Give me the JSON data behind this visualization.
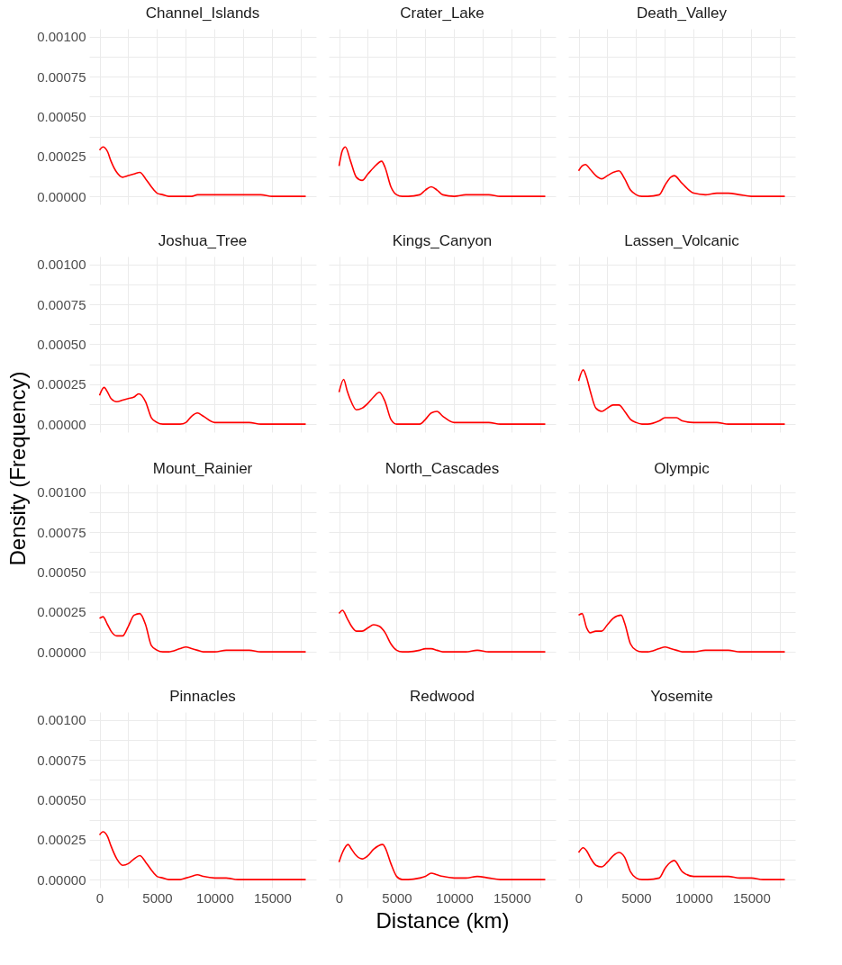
{
  "chart_data": [
    {
      "type": "line",
      "title": "Channel_Islands",
      "color": "#ff0000",
      "grid": true,
      "tick_labels": "y",
      "xlim": [
        -900,
        18800
      ],
      "ylim": [
        -5e-05,
        0.00105
      ],
      "xticks": [
        0,
        {
          "value": 2500,
          "label": null
        },
        5000,
        {
          "value": 7500,
          "label": null
        },
        10000,
        {
          "value": 12500,
          "label": null
        },
        15000,
        {
          "value": 17500,
          "label": null
        }
      ],
      "yticks": [
        {
          "value": 0,
          "label": "0.00000"
        },
        {
          "value": 0.000125,
          "label": null
        },
        {
          "value": 0.00025,
          "label": "0.00025"
        },
        {
          "value": 0.000375,
          "label": null
        },
        {
          "value": 0.0005,
          "label": "0.00050"
        },
        {
          "value": 0.000625,
          "label": null
        },
        {
          "value": 0.00075,
          "label": "0.00075"
        },
        {
          "value": 0.000875,
          "label": null
        },
        {
          "value": 0.001,
          "label": "0.00100"
        }
      ],
      "x": [
        0,
        300,
        700,
        1000,
        1500,
        2000,
        2500,
        3000,
        3500,
        4000,
        4500,
        5000,
        5500,
        6000,
        7000,
        7500,
        8000,
        8500,
        9000,
        10000,
        11000,
        12000,
        13000,
        14000,
        15000,
        16000,
        17900
      ],
      "values": [
        0.00029,
        0.00031,
        0.00028,
        0.00022,
        0.00015,
        0.00012,
        0.00013,
        0.00014,
        0.00015,
        0.00011,
        6e-05,
        2e-05,
        1e-05,
        0,
        0,
        0,
        0,
        1e-05,
        1e-05,
        1e-05,
        1e-05,
        1e-05,
        1e-05,
        1e-05,
        0,
        0,
        0
      ]
    },
    {
      "type": "line",
      "title": "Crater_Lake",
      "color": "#ff0000",
      "grid": true,
      "tick_labels": false,
      "xlim": [
        -900,
        18800
      ],
      "ylim": [
        -5e-05,
        0.00105
      ],
      "xticks": [
        0,
        {
          "value": 2500,
          "label": null
        },
        5000,
        {
          "value": 7500,
          "label": null
        },
        10000,
        {
          "value": 12500,
          "label": null
        },
        15000,
        {
          "value": 17500,
          "label": null
        }
      ],
      "yticks": [
        {
          "value": 0,
          "label": null
        },
        {
          "value": 0.000125,
          "label": null
        },
        {
          "value": 0.00025,
          "label": null
        },
        {
          "value": 0.000375,
          "label": null
        },
        {
          "value": 0.0005,
          "label": null
        },
        {
          "value": 0.000625,
          "label": null
        },
        {
          "value": 0.00075,
          "label": null
        },
        {
          "value": 0.000875,
          "label": null
        },
        {
          "value": 0.001,
          "label": null
        }
      ],
      "x": [
        0,
        300,
        550,
        1000,
        1500,
        2000,
        2500,
        3000,
        3700,
        4000,
        4500,
        5000,
        5500,
        6000,
        7000,
        7500,
        8000,
        8500,
        9000,
        10000,
        11000,
        12000,
        13000,
        14000,
        15000,
        16000,
        17900
      ],
      "values": [
        0.00019,
        0.00029,
        0.00031,
        0.00022,
        0.00012,
        0.0001,
        0.00014,
        0.00018,
        0.00022,
        0.00018,
        6e-05,
        1e-05,
        0,
        0,
        1e-05,
        4e-05,
        6e-05,
        4e-05,
        1e-05,
        0,
        1e-05,
        1e-05,
        1e-05,
        0,
        0,
        0,
        0
      ]
    },
    {
      "type": "line",
      "title": "Death_Valley",
      "color": "#ff0000",
      "grid": true,
      "tick_labels": false,
      "xlim": [
        -900,
        18800
      ],
      "ylim": [
        -5e-05,
        0.00105
      ],
      "xticks": [
        0,
        {
          "value": 2500,
          "label": null
        },
        5000,
        {
          "value": 7500,
          "label": null
        },
        10000,
        {
          "value": 12500,
          "label": null
        },
        15000,
        {
          "value": 17500,
          "label": null
        }
      ],
      "yticks": [
        {
          "value": 0,
          "label": null
        },
        {
          "value": 0.000125,
          "label": null
        },
        {
          "value": 0.00025,
          "label": null
        },
        {
          "value": 0.000375,
          "label": null
        },
        {
          "value": 0.0005,
          "label": null
        },
        {
          "value": 0.000625,
          "label": null
        },
        {
          "value": 0.00075,
          "label": null
        },
        {
          "value": 0.000875,
          "label": null
        },
        {
          "value": 0.001,
          "label": null
        }
      ],
      "x": [
        0,
        300,
        600,
        1000,
        1500,
        2000,
        2500,
        3000,
        3500,
        4000,
        4500,
        5000,
        5500,
        6000,
        7000,
        7500,
        8000,
        8300,
        9000,
        10000,
        11000,
        12000,
        13000,
        14000,
        15000,
        16000,
        17900
      ],
      "values": [
        0.00016,
        0.00019,
        0.0002,
        0.00017,
        0.00013,
        0.00011,
        0.00013,
        0.00015,
        0.00016,
        0.00011,
        4e-05,
        1e-05,
        0,
        0,
        1e-05,
        7e-05,
        0.00012,
        0.00013,
        8e-05,
        2e-05,
        1e-05,
        2e-05,
        2e-05,
        1e-05,
        0,
        0,
        0
      ]
    },
    {
      "type": "line",
      "title": "Joshua_Tree",
      "color": "#ff0000",
      "grid": true,
      "tick_labels": "y",
      "xlim": [
        -900,
        18800
      ],
      "ylim": [
        -5e-05,
        0.00105
      ],
      "xticks": [
        0,
        {
          "value": 2500,
          "label": null
        },
        5000,
        {
          "value": 7500,
          "label": null
        },
        10000,
        {
          "value": 12500,
          "label": null
        },
        15000,
        {
          "value": 17500,
          "label": null
        }
      ],
      "yticks": [
        {
          "value": 0,
          "label": "0.00000"
        },
        {
          "value": 0.000125,
          "label": null
        },
        {
          "value": 0.00025,
          "label": "0.00025"
        },
        {
          "value": 0.000375,
          "label": null
        },
        {
          "value": 0.0005,
          "label": "0.00050"
        },
        {
          "value": 0.000625,
          "label": null
        },
        {
          "value": 0.00075,
          "label": "0.00075"
        },
        {
          "value": 0.000875,
          "label": null
        },
        {
          "value": 0.001,
          "label": "0.00100"
        }
      ],
      "x": [
        0,
        400,
        700,
        1000,
        1500,
        2000,
        2500,
        3000,
        3400,
        4000,
        4500,
        5000,
        5500,
        6000,
        7000,
        7500,
        8000,
        8500,
        9000,
        10000,
        11000,
        12000,
        13000,
        14000,
        15000,
        16000,
        17900
      ],
      "values": [
        0.00018,
        0.00023,
        0.0002,
        0.00016,
        0.00014,
        0.00015,
        0.00016,
        0.00017,
        0.00019,
        0.00014,
        4e-05,
        1e-05,
        0,
        0,
        0,
        1e-05,
        5e-05,
        7e-05,
        5e-05,
        1e-05,
        1e-05,
        1e-05,
        1e-05,
        0,
        0,
        0,
        0
      ]
    },
    {
      "type": "line",
      "title": "Kings_Canyon",
      "color": "#ff0000",
      "grid": true,
      "tick_labels": false,
      "xlim": [
        -900,
        18800
      ],
      "ylim": [
        -5e-05,
        0.00105
      ],
      "xticks": [
        0,
        {
          "value": 2500,
          "label": null
        },
        5000,
        {
          "value": 7500,
          "label": null
        },
        10000,
        {
          "value": 12500,
          "label": null
        },
        15000,
        {
          "value": 17500,
          "label": null
        }
      ],
      "yticks": [
        {
          "value": 0,
          "label": null
        },
        {
          "value": 0.000125,
          "label": null
        },
        {
          "value": 0.00025,
          "label": null
        },
        {
          "value": 0.000375,
          "label": null
        },
        {
          "value": 0.0005,
          "label": null
        },
        {
          "value": 0.000625,
          "label": null
        },
        {
          "value": 0.00075,
          "label": null
        },
        {
          "value": 0.000875,
          "label": null
        },
        {
          "value": 0.001,
          "label": null
        }
      ],
      "x": [
        0,
        400,
        700,
        1000,
        1500,
        2000,
        2500,
        3000,
        3500,
        4000,
        4500,
        5000,
        5500,
        6000,
        7000,
        7500,
        8000,
        8500,
        9000,
        10000,
        11000,
        12000,
        13000,
        14000,
        15000,
        16000,
        17900
      ],
      "values": [
        0.0002,
        0.00028,
        0.00021,
        0.00015,
        9e-05,
        0.0001,
        0.00013,
        0.00017,
        0.0002,
        0.00014,
        3e-05,
        0,
        0,
        0,
        0,
        3e-05,
        7e-05,
        8e-05,
        5e-05,
        1e-05,
        1e-05,
        1e-05,
        1e-05,
        0,
        0,
        0,
        0
      ]
    },
    {
      "type": "line",
      "title": "Lassen_Volcanic",
      "color": "#ff0000",
      "grid": true,
      "tick_labels": false,
      "xlim": [
        -900,
        18800
      ],
      "ylim": [
        -5e-05,
        0.00105
      ],
      "xticks": [
        0,
        {
          "value": 2500,
          "label": null
        },
        5000,
        {
          "value": 7500,
          "label": null
        },
        10000,
        {
          "value": 12500,
          "label": null
        },
        15000,
        {
          "value": 17500,
          "label": null
        }
      ],
      "yticks": [
        {
          "value": 0,
          "label": null
        },
        {
          "value": 0.000125,
          "label": null
        },
        {
          "value": 0.00025,
          "label": null
        },
        {
          "value": 0.000375,
          "label": null
        },
        {
          "value": 0.0005,
          "label": null
        },
        {
          "value": 0.000625,
          "label": null
        },
        {
          "value": 0.00075,
          "label": null
        },
        {
          "value": 0.000875,
          "label": null
        },
        {
          "value": 0.001,
          "label": null
        }
      ],
      "x": [
        0,
        400,
        700,
        1000,
        1500,
        2000,
        2500,
        3000,
        3500,
        4000,
        4500,
        5000,
        5500,
        6000,
        7000,
        7500,
        8000,
        8500,
        9000,
        10000,
        11000,
        12000,
        13000,
        14000,
        15000,
        16000,
        17900
      ],
      "values": [
        0.00027,
        0.00034,
        0.00029,
        0.00021,
        0.0001,
        8e-05,
        0.0001,
        0.00012,
        0.00012,
        8e-05,
        3e-05,
        1e-05,
        0,
        0,
        2e-05,
        4e-05,
        4e-05,
        4e-05,
        2e-05,
        1e-05,
        1e-05,
        1e-05,
        0,
        0,
        0,
        0,
        0
      ]
    },
    {
      "type": "line",
      "title": "Mount_Rainier",
      "ylabel": "Density (Frequency)",
      "color": "#ff0000",
      "grid": true,
      "tick_labels": "y",
      "xlim": [
        -900,
        18800
      ],
      "ylim": [
        -5e-05,
        0.00105
      ],
      "xticks": [
        0,
        {
          "value": 2500,
          "label": null
        },
        5000,
        {
          "value": 7500,
          "label": null
        },
        10000,
        {
          "value": 12500,
          "label": null
        },
        15000,
        {
          "value": 17500,
          "label": null
        }
      ],
      "yticks": [
        {
          "value": 0,
          "label": "0.00000"
        },
        {
          "value": 0.000125,
          "label": null
        },
        {
          "value": 0.00025,
          "label": "0.00025"
        },
        {
          "value": 0.000375,
          "label": null
        },
        {
          "value": 0.0005,
          "label": "0.00050"
        },
        {
          "value": 0.000625,
          "label": null
        },
        {
          "value": 0.00075,
          "label": "0.00075"
        },
        {
          "value": 0.000875,
          "label": null
        },
        {
          "value": 0.001,
          "label": "0.00100"
        }
      ],
      "x": [
        0,
        300,
        700,
        1000,
        1500,
        2000,
        2500,
        3000,
        3500,
        4000,
        4500,
        5000,
        5500,
        6000,
        7000,
        7500,
        8000,
        8500,
        9000,
        10000,
        11000,
        12000,
        13000,
        14000,
        15000,
        16000,
        17900
      ],
      "values": [
        0.00021,
        0.00022,
        0.00017,
        0.00013,
        0.0001,
        0.0001,
        0.00016,
        0.00023,
        0.00024,
        0.00017,
        4e-05,
        1e-05,
        0,
        0,
        2e-05,
        3e-05,
        2e-05,
        1e-05,
        0,
        0,
        1e-05,
        1e-05,
        1e-05,
        0,
        0,
        0,
        0
      ]
    },
    {
      "type": "line",
      "title": "North_Cascades",
      "color": "#ff0000",
      "grid": true,
      "tick_labels": false,
      "xlim": [
        -900,
        18800
      ],
      "ylim": [
        -5e-05,
        0.00105
      ],
      "xticks": [
        0,
        {
          "value": 2500,
          "label": null
        },
        5000,
        {
          "value": 7500,
          "label": null
        },
        10000,
        {
          "value": 12500,
          "label": null
        },
        15000,
        {
          "value": 17500,
          "label": null
        }
      ],
      "yticks": [
        {
          "value": 0,
          "label": null
        },
        {
          "value": 0.000125,
          "label": null
        },
        {
          "value": 0.00025,
          "label": null
        },
        {
          "value": 0.000375,
          "label": null
        },
        {
          "value": 0.0005,
          "label": null
        },
        {
          "value": 0.000625,
          "label": null
        },
        {
          "value": 0.00075,
          "label": null
        },
        {
          "value": 0.000875,
          "label": null
        },
        {
          "value": 0.001,
          "label": null
        }
      ],
      "x": [
        0,
        300,
        700,
        1000,
        1500,
        2000,
        2500,
        3000,
        3500,
        4000,
        4500,
        5000,
        5500,
        6000,
        7000,
        7500,
        8000,
        8500,
        9000,
        10000,
        11000,
        12000,
        13000,
        14000,
        15000,
        16000,
        17900
      ],
      "values": [
        0.00024,
        0.00026,
        0.00021,
        0.00017,
        0.00013,
        0.00013,
        0.00015,
        0.00017,
        0.00016,
        0.00012,
        5e-05,
        1e-05,
        0,
        0,
        1e-05,
        2e-05,
        2e-05,
        1e-05,
        0,
        0,
        0,
        1e-05,
        0,
        0,
        0,
        0,
        0
      ]
    },
    {
      "type": "line",
      "title": "Olympic",
      "color": "#ff0000",
      "grid": true,
      "tick_labels": false,
      "xlim": [
        -900,
        18800
      ],
      "ylim": [
        -5e-05,
        0.00105
      ],
      "xticks": [
        0,
        {
          "value": 2500,
          "label": null
        },
        5000,
        {
          "value": 7500,
          "label": null
        },
        10000,
        {
          "value": 12500,
          "label": null
        },
        15000,
        {
          "value": 17500,
          "label": null
        }
      ],
      "yticks": [
        {
          "value": 0,
          "label": null
        },
        {
          "value": 0.000125,
          "label": null
        },
        {
          "value": 0.00025,
          "label": null
        },
        {
          "value": 0.000375,
          "label": null
        },
        {
          "value": 0.0005,
          "label": null
        },
        {
          "value": 0.000625,
          "label": null
        },
        {
          "value": 0.00075,
          "label": null
        },
        {
          "value": 0.000875,
          "label": null
        },
        {
          "value": 0.001,
          "label": null
        }
      ],
      "x": [
        0,
        300,
        700,
        1000,
        1500,
        2000,
        2500,
        3000,
        3700,
        4000,
        4500,
        5000,
        5500,
        6000,
        7000,
        7500,
        8000,
        8500,
        9000,
        10000,
        11000,
        12000,
        13000,
        14000,
        15000,
        16000,
        17900
      ],
      "values": [
        0.00023,
        0.00024,
        0.00015,
        0.00012,
        0.00013,
        0.00013,
        0.00017,
        0.00021,
        0.00023,
        0.00018,
        5e-05,
        1e-05,
        0,
        0,
        2e-05,
        3e-05,
        2e-05,
        1e-05,
        0,
        0,
        1e-05,
        1e-05,
        1e-05,
        0,
        0,
        0,
        0
      ]
    },
    {
      "type": "line",
      "title": "Pinnacles",
      "color": "#ff0000",
      "grid": true,
      "xlim": [
        -900,
        18800
      ],
      "ylim": [
        -5e-05,
        0.00105
      ],
      "xticks": [
        0,
        {
          "value": 2500,
          "label": null
        },
        5000,
        {
          "value": 7500,
          "label": null
        },
        10000,
        {
          "value": 12500,
          "label": null
        },
        15000,
        {
          "value": 17500,
          "label": null
        }
      ],
      "yticks": [
        {
          "value": 0,
          "label": "0.00000"
        },
        {
          "value": 0.000125,
          "label": null
        },
        {
          "value": 0.00025,
          "label": "0.00025"
        },
        {
          "value": 0.000375,
          "label": null
        },
        {
          "value": 0.0005,
          "label": "0.00050"
        },
        {
          "value": 0.000625,
          "label": null
        },
        {
          "value": 0.00075,
          "label": "0.00075"
        },
        {
          "value": 0.000875,
          "label": null
        },
        {
          "value": 0.001,
          "label": "0.00100"
        }
      ],
      "x": [
        0,
        300,
        700,
        1000,
        1500,
        2000,
        2500,
        3000,
        3500,
        4000,
        4500,
        5000,
        5500,
        6000,
        7000,
        7500,
        8000,
        8500,
        9000,
        10000,
        11000,
        12000,
        13000,
        14000,
        15000,
        16000,
        17900
      ],
      "values": [
        0.00028,
        0.0003,
        0.00027,
        0.00021,
        0.00013,
        9e-05,
        0.0001,
        0.00013,
        0.00015,
        0.00011,
        6e-05,
        2e-05,
        1e-05,
        0,
        0,
        1e-05,
        2e-05,
        3e-05,
        2e-05,
        1e-05,
        1e-05,
        0,
        0,
        0,
        0,
        0,
        0
      ]
    },
    {
      "type": "line",
      "title": "Redwood",
      "xlabel": "Distance (km)",
      "color": "#ff0000",
      "grid": true,
      "tick_labels": "x",
      "xlim": [
        -900,
        18800
      ],
      "ylim": [
        -5e-05,
        0.00105
      ],
      "xticks": [
        0,
        {
          "value": 2500,
          "label": null
        },
        5000,
        {
          "value": 7500,
          "label": null
        },
        10000,
        {
          "value": 12500,
          "label": null
        },
        15000,
        {
          "value": 17500,
          "label": null
        }
      ],
      "yticks": [
        {
          "value": 0,
          "label": null
        },
        {
          "value": 0.000125,
          "label": null
        },
        {
          "value": 0.00025,
          "label": null
        },
        {
          "value": 0.000375,
          "label": null
        },
        {
          "value": 0.0005,
          "label": null
        },
        {
          "value": 0.000625,
          "label": null
        },
        {
          "value": 0.00075,
          "label": null
        },
        {
          "value": 0.000875,
          "label": null
        },
        {
          "value": 0.001,
          "label": null
        }
      ],
      "x": [
        0,
        300,
        800,
        1000,
        1500,
        2000,
        2500,
        3000,
        3800,
        4000,
        4500,
        5000,
        5500,
        6000,
        7000,
        7500,
        8000,
        8500,
        9000,
        10000,
        11000,
        12000,
        13000,
        14000,
        15000,
        16000,
        17900
      ],
      "values": [
        0.00011,
        0.00017,
        0.00022,
        0.0002,
        0.00015,
        0.00013,
        0.00015,
        0.00019,
        0.00022,
        0.0002,
        0.0001,
        2e-05,
        0,
        0,
        1e-05,
        2e-05,
        4e-05,
        3e-05,
        2e-05,
        1e-05,
        1e-05,
        2e-05,
        1e-05,
        0,
        0,
        0,
        0
      ]
    },
    {
      "type": "line",
      "title": "Yosemite",
      "color": "#ff0000",
      "grid": true,
      "tick_labels": "x",
      "xlim": [
        -900,
        18800
      ],
      "ylim": [
        -5e-05,
        0.00105
      ],
      "xticks": [
        0,
        {
          "value": 2500,
          "label": null
        },
        5000,
        {
          "value": 7500,
          "label": null
        },
        10000,
        {
          "value": 12500,
          "label": null
        },
        15000,
        {
          "value": 17500,
          "label": null
        }
      ],
      "yticks": [
        {
          "value": 0,
          "label": null
        },
        {
          "value": 0.000125,
          "label": null
        },
        {
          "value": 0.00025,
          "label": null
        },
        {
          "value": 0.000375,
          "label": null
        },
        {
          "value": 0.0005,
          "label": null
        },
        {
          "value": 0.000625,
          "label": null
        },
        {
          "value": 0.00075,
          "label": null
        },
        {
          "value": 0.000875,
          "label": null
        },
        {
          "value": 0.001,
          "label": null
        }
      ],
      "x": [
        0,
        400,
        700,
        1000,
        1500,
        2000,
        2500,
        3000,
        3500,
        4000,
        4500,
        5000,
        5500,
        6000,
        7000,
        7500,
        8000,
        8300,
        9000,
        10000,
        11000,
        12000,
        13000,
        14000,
        15000,
        16000,
        17900
      ],
      "values": [
        0.00017,
        0.0002,
        0.00018,
        0.00014,
        9e-05,
        8e-05,
        0.00011,
        0.00015,
        0.00017,
        0.00014,
        5e-05,
        1e-05,
        0,
        0,
        1e-05,
        7e-05,
        0.00011,
        0.00012,
        5e-05,
        2e-05,
        2e-05,
        2e-05,
        2e-05,
        1e-05,
        1e-05,
        0,
        0
      ]
    }
  ]
}
